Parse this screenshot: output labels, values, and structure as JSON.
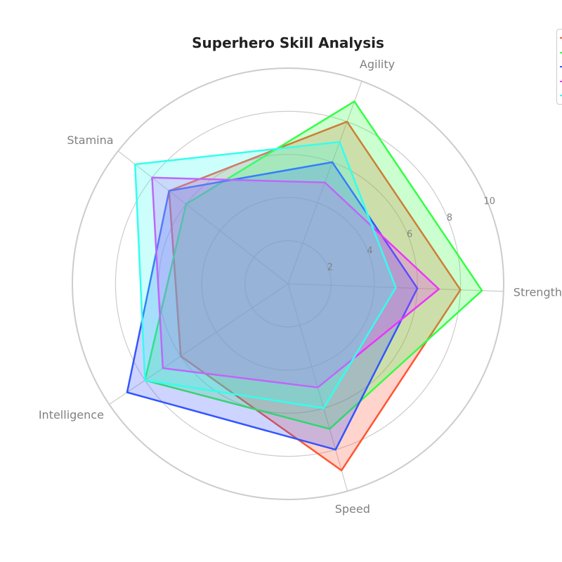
{
  "chart_data": {
    "type": "radar",
    "title": "Superhero Skill Analysis",
    "axes": [
      "Strength",
      "Speed",
      "Intelligence",
      "Stamina",
      "Agility"
    ],
    "rlim": [
      0,
      10
    ],
    "r_ticks": [
      "2",
      "4",
      "6",
      "8",
      "10"
    ],
    "grid": true,
    "legend_placement": "top-right",
    "series": [
      {
        "color": "#ff5533",
        "values": [
          8,
          9,
          6,
          7,
          8
        ]
      },
      {
        "color": "#33ff44",
        "values": [
          9,
          7,
          8,
          6,
          9
        ]
      },
      {
        "color": "#3355ff",
        "values": [
          6,
          8,
          9,
          7,
          6
        ]
      },
      {
        "color": "#ee33ff",
        "values": [
          7,
          5,
          7,
          8,
          5
        ]
      },
      {
        "color": "#33ffee",
        "values": [
          5,
          6,
          8,
          9,
          7
        ]
      }
    ]
  }
}
